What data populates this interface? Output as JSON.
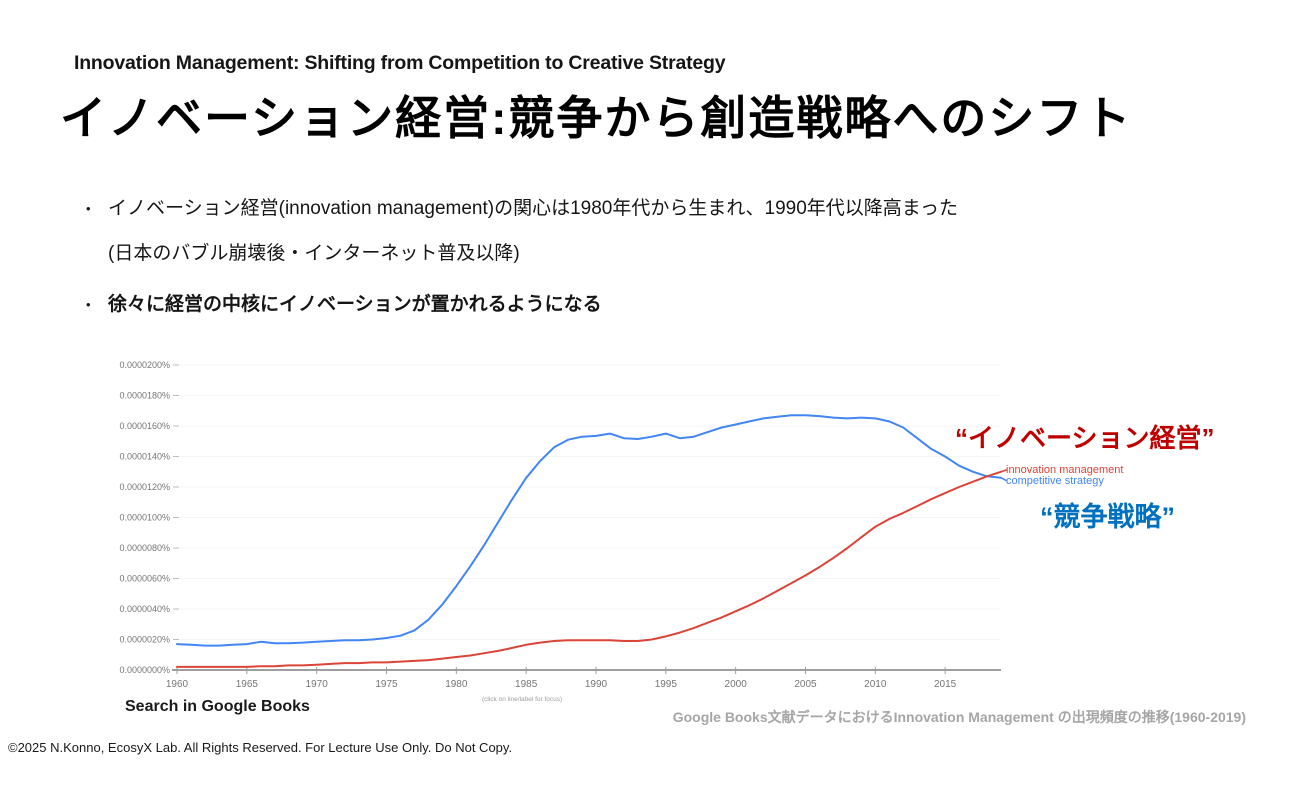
{
  "slide": {
    "title_en": "Innovation Management: Shifting from Competition to Creative Strategy",
    "title_ja": "イノベーション経営:競争から創造戦略へのシフト",
    "bullets": [
      {
        "line1": "イノベーション経営(innovation management)の関心は1980年代から生まれ、1990年代以降高まった",
        "line2": "(日本のバブル崩壊後・インターネット普及以降)"
      },
      {
        "line1": "徐々に経営の中核にイノベーションが置かれるようになる"
      }
    ]
  },
  "chart": {
    "annotation_red": "“イノベーション経営”",
    "annotation_blue": "“競争戦略”",
    "legend_red": "innovation management",
    "legend_blue": "competitive strategy",
    "source_label": "Search in Google Books",
    "hint": "(click on line/label for focus)",
    "colors": {
      "line_red": "#db4437",
      "line_blue": "#4285f4",
      "annotation_red": "#c00000",
      "annotation_blue": "#0070c0",
      "axis": "#9e9e9e",
      "tick_label": "#757575",
      "gridline": "#f5f5f5"
    }
  },
  "footer": {
    "copyright": "©2025  N.Konno, EcosyX Lab.  All Rights Reserved. For Lecture Use Only. Do Not Copy.",
    "caption": "Google Books文献データにおけるInnovation Management の出現頻度の推移(1960-2019)"
  },
  "chart_data": {
    "type": "line",
    "title": "Google Books Ngram: innovation management vs competitive strategy",
    "value_unit": "word frequency in percent ×1e-7 (e.g. 17 = 0.0000017%)",
    "x": [
      1960,
      1961,
      1962,
      1963,
      1964,
      1965,
      1966,
      1967,
      1968,
      1969,
      1970,
      1971,
      1972,
      1973,
      1974,
      1975,
      1976,
      1977,
      1978,
      1979,
      1980,
      1981,
      1982,
      1983,
      1984,
      1985,
      1986,
      1987,
      1988,
      1989,
      1990,
      1991,
      1992,
      1993,
      1994,
      1995,
      1996,
      1997,
      1998,
      1999,
      2000,
      2001,
      2002,
      2003,
      2004,
      2005,
      2006,
      2007,
      2008,
      2009,
      2010,
      2011,
      2012,
      2013,
      2014,
      2015,
      2016,
      2017,
      2018,
      2019
    ],
    "series": [
      {
        "name": "competitive strategy",
        "color": "#4285f4",
        "values": [
          17,
          16.5,
          16,
          16,
          16.5,
          17,
          18.5,
          17.5,
          17.5,
          18,
          18.5,
          19,
          19.5,
          19.5,
          20,
          21,
          22.5,
          26,
          33,
          43,
          55,
          68,
          82,
          97,
          112,
          126,
          137,
          146,
          151,
          153,
          153.5,
          155,
          152,
          151.5,
          153,
          155,
          152,
          153,
          156,
          159,
          161,
          163,
          165,
          166,
          167,
          167,
          166.5,
          165.5,
          165,
          165.5,
          165,
          163,
          159,
          152,
          145,
          140,
          134,
          130,
          127,
          126
        ]
      },
      {
        "name": "innovation management",
        "color": "#db4437",
        "values": [
          2,
          2,
          2,
          2,
          2,
          2,
          2.5,
          2.5,
          3,
          3,
          3.5,
          4,
          4.5,
          4.5,
          5,
          5,
          5.5,
          6,
          6.5,
          7.5,
          8.5,
          9.5,
          11,
          12.5,
          14.5,
          16.5,
          18,
          19,
          19.5,
          19.5,
          19.5,
          19.5,
          19,
          19,
          20,
          22,
          24.5,
          27.5,
          31,
          34.5,
          38.5,
          42.5,
          47,
          52,
          57,
          62,
          67.5,
          73.5,
          80,
          87,
          94,
          99,
          103,
          107.5,
          112,
          116,
          120,
          123.5,
          127,
          130
        ]
      }
    ],
    "ylim": [
      0,
      200
    ],
    "yticks": [
      "0.0000200%",
      "0.0000180%",
      "0.0000160%",
      "0.0000140%",
      "0.0000120%",
      "0.0000100%",
      "0.0000080%",
      "0.0000060%",
      "0.0000040%",
      "0.0000020%",
      "0.0000000%"
    ],
    "xticks": [
      1960,
      1965,
      1970,
      1975,
      1980,
      1985,
      1990,
      1995,
      2000,
      2005,
      2010,
      2015
    ],
    "xlabel": "",
    "ylabel": "",
    "grid": true,
    "legend_position": "right of line ends"
  }
}
